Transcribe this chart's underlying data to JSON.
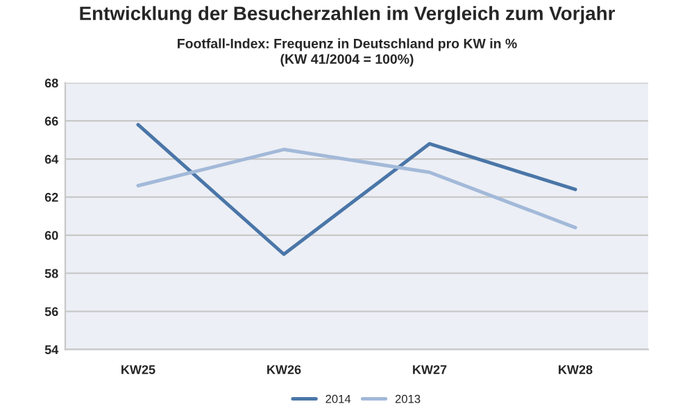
{
  "chart_data": {
    "type": "line",
    "title": "Entwicklung der Besucherzahlen im Vergleich zum Vorjahr",
    "subtitle": "Footfall-Index: Frequenz in Deutschland pro KW in %\n(KW 41/2004 = 100%)",
    "categories": [
      "KW25",
      "KW26",
      "KW27",
      "KW28"
    ],
    "series": [
      {
        "name": "2014",
        "color": "#4a76a8",
        "values": [
          65.8,
          59.0,
          64.8,
          62.4
        ]
      },
      {
        "name": "2013",
        "color": "#a3b9d9",
        "values": [
          62.6,
          64.5,
          63.3,
          60.4
        ]
      }
    ],
    "ylim": [
      54,
      68
    ],
    "yticks": [
      54,
      56,
      58,
      60,
      62,
      64,
      66,
      68
    ],
    "grid": "y",
    "legend": "bottom",
    "marker": "none",
    "line_style": "solid"
  }
}
